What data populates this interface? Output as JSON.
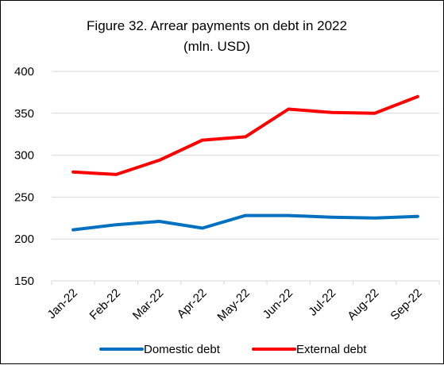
{
  "chart_data": {
    "type": "line",
    "title": "Figure 32. Arrear payments on debt in 2022",
    "subtitle": "(mln. USD)",
    "xlabel": "",
    "ylabel": "",
    "categories": [
      "Jan-22",
      "Feb-22",
      "Mar-22",
      "Apr-22",
      "May-22",
      "Jun-22",
      "Jul-22",
      "Aug-22",
      "Sep-22"
    ],
    "ylim": [
      150,
      400
    ],
    "yticks": [
      150,
      200,
      250,
      300,
      350,
      400
    ],
    "grid": true,
    "legend_position": "bottom",
    "series": [
      {
        "name": "Domestic debt",
        "color": "#0070c0",
        "values": [
          211,
          217,
          221,
          213,
          228,
          228,
          226,
          225,
          227
        ]
      },
      {
        "name": "External debt",
        "color": "#ff0000",
        "values": [
          280,
          277,
          294,
          318,
          322,
          355,
          351,
          350,
          370
        ]
      }
    ]
  }
}
